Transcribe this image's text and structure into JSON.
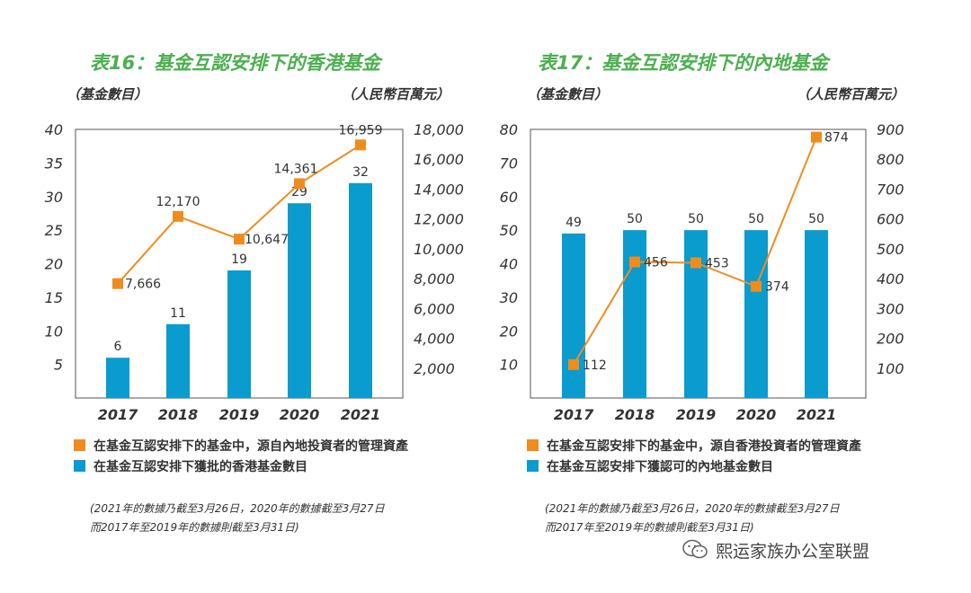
{
  "chart_data": [
    {
      "type": "bar",
      "title": "表16：基金互認安排下的香港基金",
      "left_axis_label": "（基金數目）",
      "right_axis_label": "（人民幣百萬元）",
      "categories": [
        "2017",
        "2018",
        "2019",
        "2020",
        "2021"
      ],
      "left_ticks": [
        "5",
        "10",
        "15",
        "20",
        "25",
        "30",
        "35",
        "40"
      ],
      "right_ticks": [
        "2,000",
        "4,000",
        "6,000",
        "8,000",
        "10,000",
        "12,000",
        "14,000",
        "16,000",
        "18,000"
      ],
      "ylim_left": [
        0,
        40
      ],
      "ylim_right": [
        0,
        18000
      ],
      "series": [
        {
          "name": "在基金互認安排下獲批的香港基金數目",
          "kind": "bar",
          "axis": "left",
          "color": "#0a9bcf",
          "values": [
            6,
            11,
            19,
            29,
            32
          ],
          "labels": [
            "6",
            "11",
            "19",
            "29",
            "32"
          ]
        },
        {
          "name": "在基金互認安排下的基金中，源自內地投資者的管理資產",
          "kind": "line",
          "axis": "right",
          "color": "#f08c1e",
          "values": [
            7666,
            12170,
            10647,
            14361,
            16959
          ],
          "labels": [
            "7,666",
            "12,170",
            "10,647",
            "14,361",
            "16,959"
          ]
        }
      ],
      "legend": [
        {
          "label": "在基金互認安排下的基金中，源自內地投資者的管理資產",
          "color": "#f08c1e"
        },
        {
          "label": "在基金互認安排下獲批的香港基金數目",
          "color": "#0a9bcf"
        }
      ],
      "notes": [
        "(2021年的數據乃截至3月26日，2020年的數據截至3月27日",
        "而2017年至2019年的數據則截至3月31日)"
      ]
    },
    {
      "type": "bar",
      "title": "表17：基金互認安排下的內地基金",
      "left_axis_label": "（基金數目）",
      "right_axis_label": "（人民幣百萬元）",
      "categories": [
        "2017",
        "2018",
        "2019",
        "2020",
        "2021"
      ],
      "left_ticks": [
        "10",
        "20",
        "30",
        "40",
        "50",
        "60",
        "70",
        "80"
      ],
      "right_ticks": [
        "100",
        "200",
        "300",
        "400",
        "500",
        "600",
        "700",
        "800",
        "900"
      ],
      "ylim_left": [
        0,
        80
      ],
      "ylim_right": [
        0,
        900
      ],
      "series": [
        {
          "name": "在基金互認安排下獲認可的內地基金數目",
          "kind": "bar",
          "axis": "left",
          "color": "#0a9bcf",
          "values": [
            49,
            50,
            50,
            50,
            50
          ],
          "labels": [
            "49",
            "50",
            "50",
            "50",
            "50"
          ]
        },
        {
          "name": "在基金互認安排下的基金中，源自香港投資者的管理資產",
          "kind": "line",
          "axis": "right",
          "color": "#f08c1e",
          "values": [
            112,
            456,
            453,
            374,
            874
          ],
          "labels": [
            "112",
            "456",
            "453",
            "374",
            "874"
          ]
        }
      ],
      "legend": [
        {
          "label": "在基金互認安排下的基金中，源自香港投資者的管理資產",
          "color": "#f08c1e"
        },
        {
          "label": "在基金互認安排下獲認可的內地基金數目",
          "color": "#0a9bcf"
        }
      ],
      "notes": [
        "(2021年的數據乃截至3月26日，2020年的數據截至3月27日",
        "而2017年至2019年的數據則截至3月31日)"
      ]
    }
  ],
  "watermark": {
    "text": "熙运家族办公室联盟",
    "icon": "wechat-icon"
  }
}
